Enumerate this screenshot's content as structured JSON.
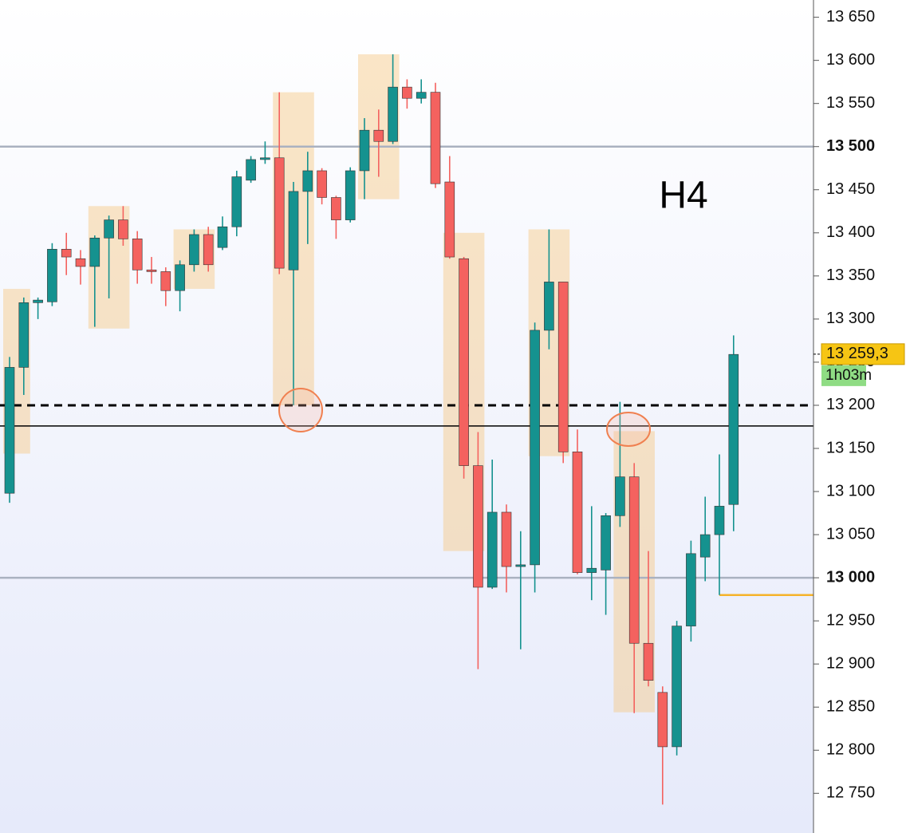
{
  "chart_data": {
    "type": "candlestick",
    "annotation": "H4",
    "categories": [
      null,
      null,
      null,
      null,
      null,
      null,
      null,
      null,
      null,
      null,
      null,
      null,
      null,
      null,
      null,
      null,
      null,
      null,
      null,
      null,
      null,
      null,
      null,
      null,
      null,
      null,
      null,
      null,
      null,
      null,
      null,
      null,
      null,
      null,
      null,
      null,
      null,
      null,
      null,
      null,
      null,
      null,
      null,
      null,
      null,
      null,
      null,
      null,
      null,
      null,
      null,
      null
    ],
    "open": [
      13098,
      13244,
      13319,
      13320,
      13381,
      13370,
      13361,
      13394,
      13415,
      13393,
      13357,
      13355,
      13333,
      13363,
      13398,
      13383,
      13407,
      13461,
      13485,
      13487,
      13357,
      13448,
      13472,
      13441,
      13415,
      13472,
      13519,
      13506,
      13569,
      13556,
      13563,
      13459,
      13370,
      13130,
      12989,
      13076,
      13013,
      13015,
      13287,
      13343,
      13146,
      13006,
      13009,
      13072,
      13117,
      12924,
      12867,
      12804,
      12944,
      13024,
      13050,
      13085
    ],
    "high": [
      13256,
      13325,
      13325,
      13388,
      13400,
      13380,
      13397,
      13420,
      13431,
      13402,
      13372,
      13360,
      13368,
      13404,
      13407,
      13419,
      13472,
      13489,
      13506,
      13563,
      13459,
      13494,
      13475,
      13443,
      13476,
      13533,
      13543,
      13607,
      13578,
      13578,
      13574,
      13489,
      13372,
      13169,
      13137,
      13085,
      13054,
      13296,
      13404,
      13343,
      13172,
      13083,
      13075,
      13204,
      13133,
      13031,
      12874,
      12950,
      13043,
      13094,
      13143,
      13281
    ],
    "low": [
      13087,
      13212,
      13300,
      13315,
      13351,
      13340,
      13291,
      13324,
      13385,
      13341,
      13341,
      13315,
      13309,
      13355,
      13355,
      13380,
      13396,
      13458,
      13480,
      13352,
      13200,
      13387,
      13433,
      13393,
      13412,
      13439,
      13465,
      13503,
      13544,
      13550,
      13452,
      13370,
      13115,
      12894,
      12987,
      12983,
      12917,
      12983,
      13265,
      13133,
      13004,
      12974,
      12957,
      13059,
      12843,
      12874,
      12737,
      12794,
      12926,
      12996,
      12980,
      13054
    ],
    "close": [
      13244,
      13319,
      13322,
      13381,
      13372,
      13361,
      13394,
      13415,
      13393,
      13357,
      13355,
      13333,
      13363,
      13398,
      13363,
      13407,
      13465,
      13485,
      13487,
      13359,
      13448,
      13472,
      13441,
      13415,
      13472,
      13519,
      13506,
      13569,
      13556,
      13563,
      13457,
      13372,
      13130,
      12989,
      13076,
      13013,
      13015,
      13287,
      13343,
      13146,
      13006,
      13011,
      13072,
      13117,
      12924,
      12881,
      12804,
      12944,
      13028,
      13050,
      13083,
      13259
    ],
    "up_color": "#15928f",
    "down_color": "#f4625f",
    "zones": [
      {
        "candles": [
          0,
          1
        ],
        "range": [
          13144,
          13335
        ]
      },
      {
        "candles": [
          6,
          8
        ],
        "range": [
          13289,
          13431
        ]
      },
      {
        "candles": [
          12,
          14
        ],
        "range": [
          13335,
          13404
        ]
      },
      {
        "candles": [
          19,
          21
        ],
        "range": [
          13200,
          13563
        ]
      },
      {
        "candles": [
          25,
          27
        ],
        "range": [
          13439,
          13607
        ]
      },
      {
        "candles": [
          31,
          33
        ],
        "range": [
          13031,
          13400
        ]
      },
      {
        "candles": [
          37,
          39
        ],
        "range": [
          13141,
          13404
        ]
      },
      {
        "candles": [
          43,
          45
        ],
        "range": [
          12844,
          13170
        ]
      }
    ],
    "zone_color": "rgba(246,200,130,0.45)",
    "levels": [
      {
        "value": 13500,
        "style": "solid",
        "color": "#aab1c0"
      },
      {
        "value": 13000,
        "style": "solid",
        "color": "#aab1c0"
      },
      {
        "value": 13200,
        "style": "dashed",
        "color": "#000000"
      },
      {
        "value": 13176,
        "style": "solid",
        "color": "#000000"
      },
      {
        "value": 12980,
        "style": "solid",
        "color": "#f5b32a",
        "from_candle": 50
      }
    ],
    "ylim": [
      12704,
      13670
    ],
    "yticks": [
      {
        "value": 12750,
        "label": "12 750"
      },
      {
        "value": 12800,
        "label": "12 800"
      },
      {
        "value": 12850,
        "label": "12 850"
      },
      {
        "value": 12900,
        "label": "12 900"
      },
      {
        "value": 12950,
        "label": "12 950"
      },
      {
        "value": 13000,
        "label": "13 000",
        "bold": true
      },
      {
        "value": 13050,
        "label": "13 050"
      },
      {
        "value": 13100,
        "label": "13 100"
      },
      {
        "value": 13150,
        "label": "13 150"
      },
      {
        "value": 13200,
        "label": "13 200"
      },
      {
        "value": 13250,
        "label": "13 250"
      },
      {
        "value": 13300,
        "label": "13 300"
      },
      {
        "value": 13350,
        "label": "13 350"
      },
      {
        "value": 13400,
        "label": "13 400"
      },
      {
        "value": 13450,
        "label": "13 450"
      },
      {
        "value": 13500,
        "label": "13 500",
        "bold": true
      },
      {
        "value": 13550,
        "label": "13 550"
      },
      {
        "value": 13600,
        "label": "13 600"
      },
      {
        "value": 13650,
        "label": "13 650"
      }
    ],
    "last_price": {
      "value": 13259.3,
      "label": "13 259,3"
    },
    "countdown": "1h03m"
  }
}
